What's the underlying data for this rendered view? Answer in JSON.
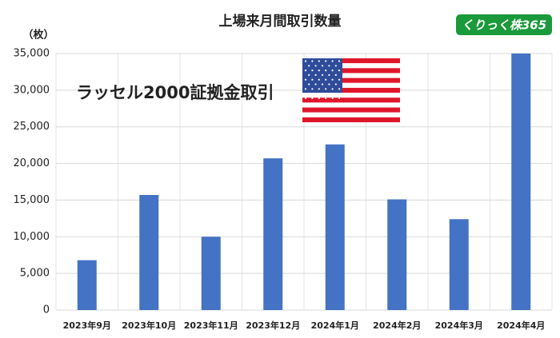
{
  "chart_data": {
    "type": "bar",
    "title": "上場来月間取引数量",
    "y_unit": "（枚）",
    "annotation": "ラッセル2000証拠金取引",
    "logo": "くりっく株365",
    "categories": [
      "2023年9月",
      "2023年10月",
      "2023年11月",
      "2023年12月",
      "2024年1月",
      "2024年2月",
      "2024年3月",
      "2024年4月"
    ],
    "values": [
      6800,
      15700,
      10000,
      20700,
      22600,
      15100,
      12400,
      35000
    ],
    "color": "#4472c4",
    "ylim": [
      0,
      35000
    ],
    "yticks": [
      0,
      {
        "value": 5000,
        "label": "5,000"
      },
      {
        "value": 10000,
        "label": "10,000"
      },
      {
        "value": 15000,
        "label": "15,000"
      },
      {
        "value": 20000,
        "label": "20,000"
      },
      {
        "value": 25000,
        "label": "25,000"
      },
      {
        "value": 30000,
        "label": "30,000"
      },
      {
        "value": 35000,
        "label": "35,000"
      }
    ],
    "grid": true
  }
}
